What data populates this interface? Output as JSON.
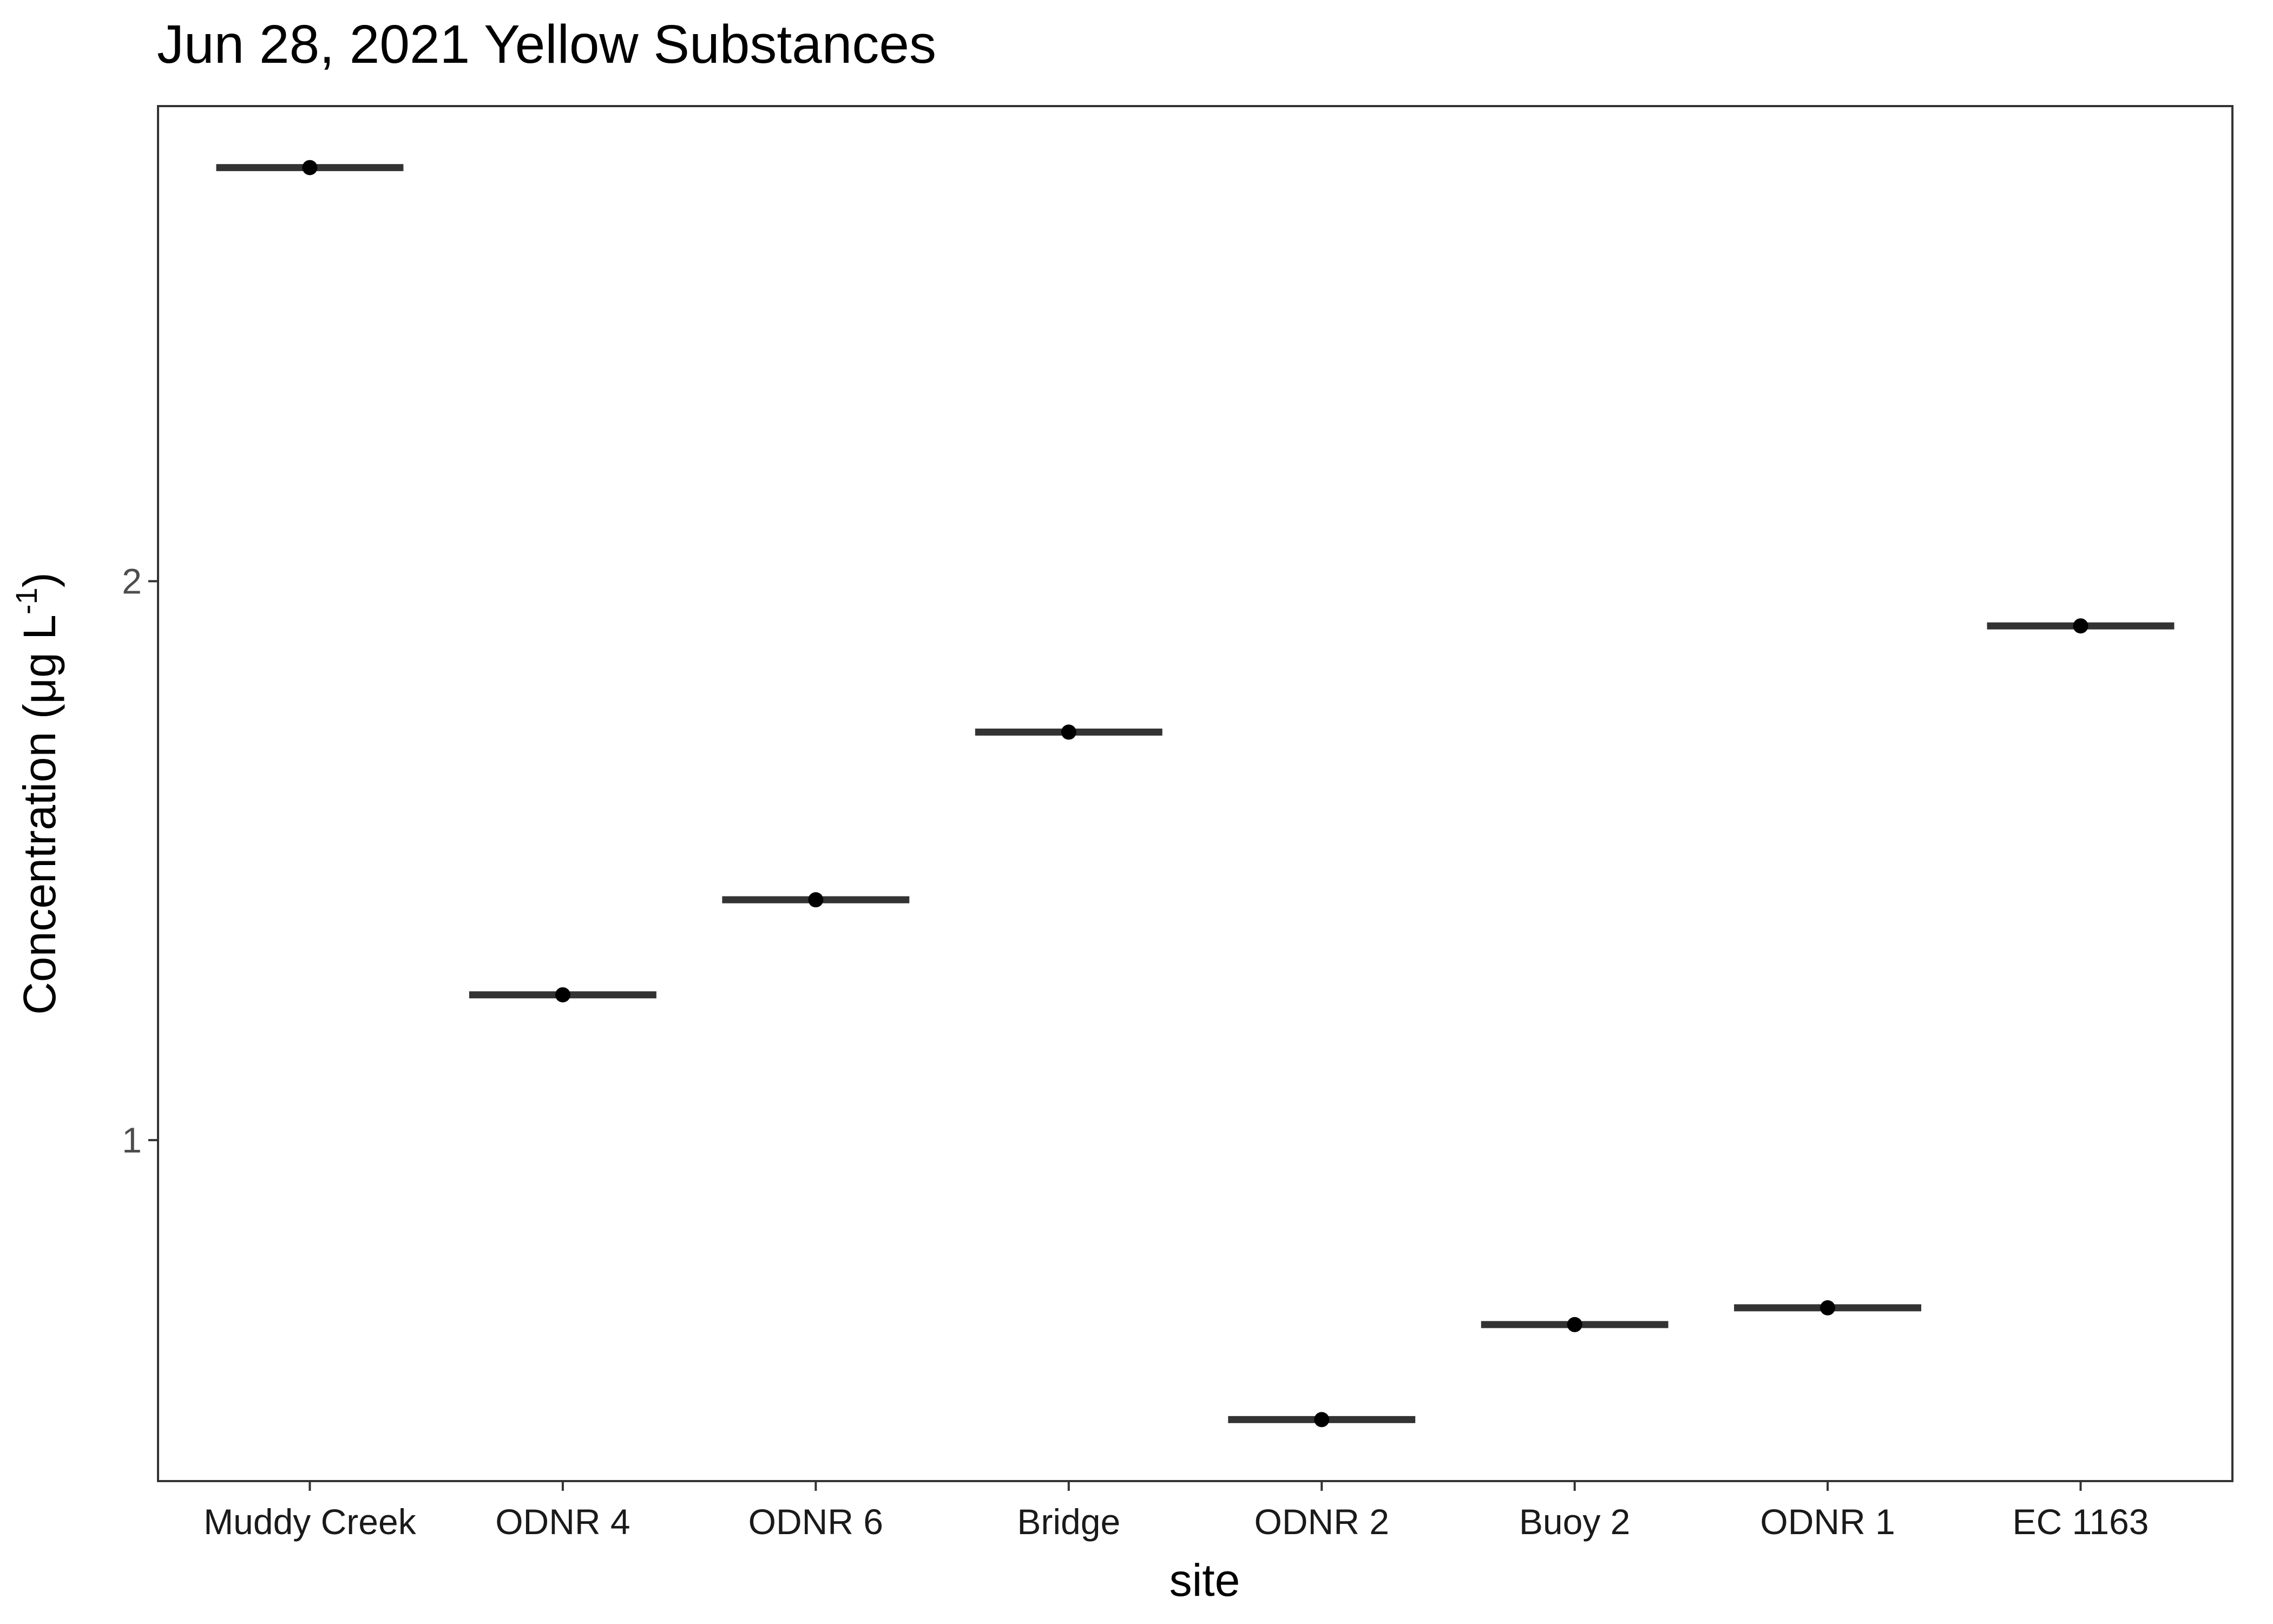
{
  "chart_data": {
    "type": "scatter",
    "title": "Jun 28, 2021 Yellow Substances",
    "xlabel": "site",
    "ylabel": {
      "main": "Concentration (μg L",
      "superscript": "-1",
      "close": ")"
    },
    "categories": [
      "Muddy Creek",
      "ODNR 4",
      "ODNR 6",
      "Bridge",
      "ODNR 2",
      "Buoy 2",
      "ODNR 1",
      "EC 1163"
    ],
    "values": [
      2.74,
      1.26,
      1.43,
      1.73,
      0.5,
      0.67,
      0.7,
      1.92
    ],
    "y_ticks": [
      1,
      2
    ],
    "ylim": [
      0.39,
      2.85
    ],
    "grid": false,
    "legend": "none",
    "colors": {
      "point": "#000000",
      "bar": "#333333",
      "panel_border": "#333333"
    }
  }
}
